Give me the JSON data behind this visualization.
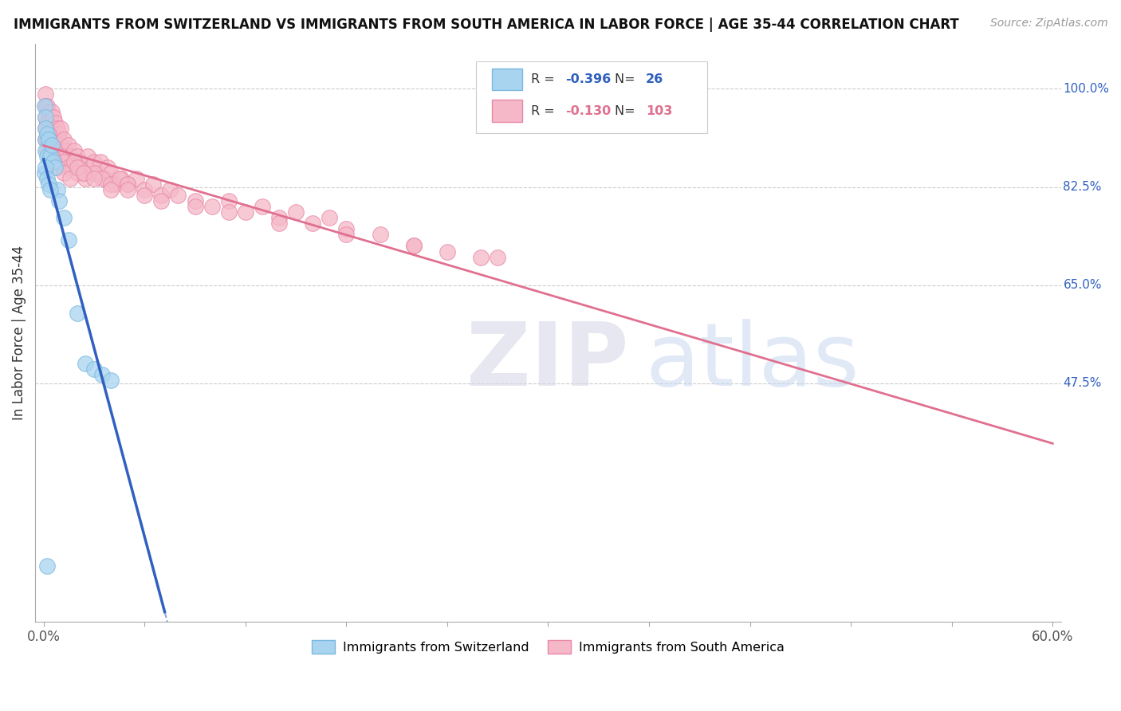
{
  "title": "IMMIGRANTS FROM SWITZERLAND VS IMMIGRANTS FROM SOUTH AMERICA IN LABOR FORCE | AGE 35-44 CORRELATION CHART",
  "source": "Source: ZipAtlas.com",
  "ylabel": "In Labor Force | Age 35-44",
  "xlim": [
    -0.005,
    0.605
  ],
  "ylim": [
    0.05,
    1.08
  ],
  "ytick_positions": [
    0.475,
    0.65,
    0.825,
    1.0
  ],
  "ytick_labels": [
    "47.5%",
    "65.0%",
    "82.5%",
    "100.0%"
  ],
  "color_swiss": "#a8d4f0",
  "color_swiss_edge": "#7ab8e0",
  "color_swiss_line": "#3060c0",
  "color_south_am": "#f5b8c8",
  "color_south_am_edge": "#e888a8",
  "color_south_am_line": "#e07090",
  "swiss_x": [
    0.0005,
    0.001,
    0.001,
    0.001,
    0.001,
    0.002,
    0.002,
    0.003,
    0.004,
    0.005,
    0.006,
    0.007,
    0.008,
    0.009,
    0.012,
    0.015,
    0.02,
    0.025,
    0.03,
    0.035,
    0.04,
    0.0005,
    0.001,
    0.002,
    0.003,
    0.004
  ],
  "swiss_y": [
    0.97,
    0.95,
    0.93,
    0.91,
    0.89,
    0.92,
    0.88,
    0.91,
    0.88,
    0.9,
    0.87,
    0.86,
    0.82,
    0.8,
    0.77,
    0.73,
    0.6,
    0.51,
    0.5,
    0.49,
    0.48,
    0.85,
    0.86,
    0.84,
    0.83,
    0.82
  ],
  "swiss_lone_x": [
    0.002
  ],
  "swiss_lone_y": [
    0.15
  ],
  "south_am_x": [
    0.001,
    0.001,
    0.001,
    0.002,
    0.002,
    0.003,
    0.003,
    0.004,
    0.004,
    0.005,
    0.005,
    0.006,
    0.006,
    0.007,
    0.007,
    0.008,
    0.008,
    0.009,
    0.009,
    0.01,
    0.01,
    0.011,
    0.012,
    0.013,
    0.014,
    0.015,
    0.016,
    0.017,
    0.018,
    0.019,
    0.02,
    0.021,
    0.022,
    0.024,
    0.026,
    0.028,
    0.03,
    0.032,
    0.034,
    0.036,
    0.038,
    0.04,
    0.043,
    0.046,
    0.05,
    0.055,
    0.06,
    0.065,
    0.07,
    0.075,
    0.08,
    0.09,
    0.1,
    0.11,
    0.12,
    0.13,
    0.14,
    0.15,
    0.16,
    0.17,
    0.18,
    0.2,
    0.22,
    0.24,
    0.26,
    0.003,
    0.005,
    0.007,
    0.01,
    0.012,
    0.015,
    0.018,
    0.02,
    0.025,
    0.03,
    0.035,
    0.04,
    0.045,
    0.05,
    0.06,
    0.001,
    0.002,
    0.004,
    0.006,
    0.008,
    0.012,
    0.016,
    0.02,
    0.024,
    0.03,
    0.04,
    0.05,
    0.07,
    0.09,
    0.11,
    0.14,
    0.18,
    0.22,
    0.27,
    0.001,
    0.002,
    0.003,
    0.005
  ],
  "south_am_y": [
    0.99,
    0.97,
    0.95,
    0.97,
    0.94,
    0.96,
    0.93,
    0.95,
    0.92,
    0.96,
    0.93,
    0.95,
    0.91,
    0.94,
    0.9,
    0.93,
    0.89,
    0.92,
    0.88,
    0.93,
    0.9,
    0.88,
    0.91,
    0.89,
    0.87,
    0.9,
    0.88,
    0.86,
    0.89,
    0.87,
    0.88,
    0.86,
    0.87,
    0.85,
    0.88,
    0.86,
    0.87,
    0.85,
    0.87,
    0.84,
    0.86,
    0.85,
    0.83,
    0.84,
    0.83,
    0.84,
    0.82,
    0.83,
    0.81,
    0.82,
    0.81,
    0.8,
    0.79,
    0.8,
    0.78,
    0.79,
    0.77,
    0.78,
    0.76,
    0.77,
    0.75,
    0.74,
    0.72,
    0.71,
    0.7,
    0.92,
    0.9,
    0.89,
    0.88,
    0.87,
    0.86,
    0.87,
    0.85,
    0.84,
    0.85,
    0.84,
    0.83,
    0.84,
    0.83,
    0.81,
    0.91,
    0.89,
    0.88,
    0.87,
    0.86,
    0.85,
    0.84,
    0.86,
    0.85,
    0.84,
    0.82,
    0.82,
    0.8,
    0.79,
    0.78,
    0.76,
    0.74,
    0.72,
    0.7,
    0.93,
    0.91,
    0.9,
    0.88
  ]
}
